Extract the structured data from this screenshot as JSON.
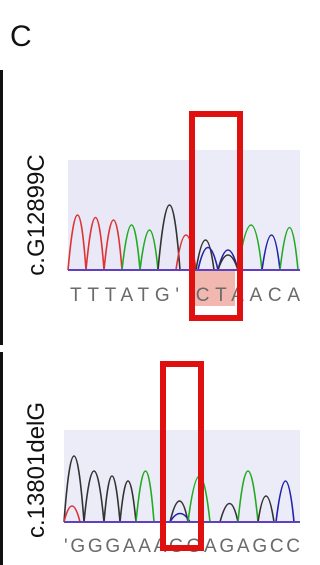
{
  "panel_label": "C",
  "rows": [
    {
      "label": "c.G12899C",
      "sequence": "TTTATG' CTAACA"
    },
    {
      "label": "c.13801delG",
      "sequence": "'GGGAAAGGAGAGCC"
    }
  ]
}
